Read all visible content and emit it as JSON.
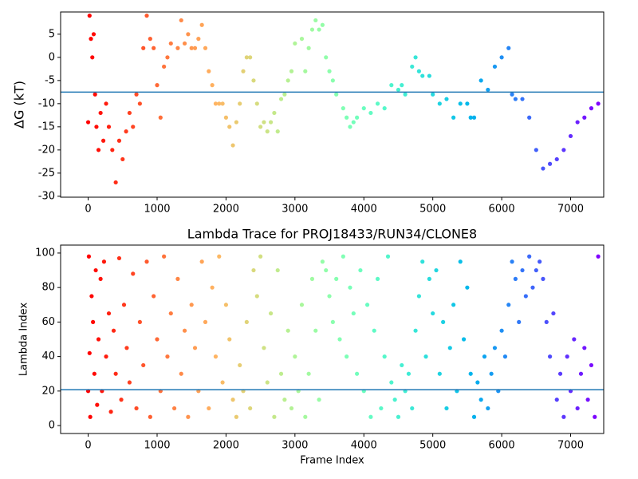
{
  "chart_data": [
    {
      "type": "scatter",
      "ylabel": "ΔG (kT)",
      "colormap": "rainbow_r",
      "hline": -7.5,
      "hline_color": "#1f77b4",
      "xlim": [
        -400,
        7480
      ],
      "xticks": [
        0,
        1000,
        2000,
        3000,
        4000,
        5000,
        6000,
        7000
      ],
      "ylim": [
        -30.2,
        9.8
      ],
      "yticks": [
        -30,
        -25,
        -20,
        -15,
        -10,
        -5,
        0,
        5
      ],
      "x": [
        0,
        20,
        40,
        60,
        80,
        100,
        120,
        150,
        180,
        220,
        260,
        300,
        350,
        400,
        450,
        500,
        550,
        600,
        650,
        700,
        750,
        800,
        850,
        900,
        950,
        1000,
        1050,
        1100,
        1150,
        1200,
        1300,
        1350,
        1400,
        1450,
        1500,
        1550,
        1600,
        1650,
        1700,
        1750,
        1800,
        1850,
        1900,
        1950,
        2000,
        2050,
        2100,
        2150,
        2200,
        2250,
        2300,
        2350,
        2400,
        2450,
        2500,
        2550,
        2600,
        2650,
        2700,
        2750,
        2800,
        2850,
        2900,
        2950,
        3000,
        3100,
        3150,
        3200,
        3250,
        3300,
        3350,
        3400,
        3450,
        3500,
        3550,
        3600,
        3700,
        3750,
        3800,
        3850,
        3900,
        4000,
        4100,
        4200,
        4300,
        4400,
        4500,
        4550,
        4600,
        4700,
        4750,
        4800,
        4850,
        4950,
        5000,
        5100,
        5200,
        5300,
        5400,
        5500,
        5550,
        5600,
        5700,
        5800,
        5900,
        6000,
        6100,
        6150,
        6200,
        6300,
        6400,
        6500,
        6600,
        6700,
        6800,
        6900,
        7000,
        7100,
        7200,
        7300,
        7400
      ],
      "y": [
        -14,
        9,
        4,
        0,
        5,
        -8,
        -15,
        -20,
        -12,
        -18,
        -10,
        -15,
        -20,
        -27,
        -18,
        -22,
        -16,
        -12,
        -15,
        -8,
        -10,
        2,
        9,
        4,
        2,
        -6,
        -13,
        -2,
        0,
        3,
        2,
        8,
        3,
        5,
        2,
        2,
        4,
        7,
        2,
        -3,
        -6,
        -10,
        -10,
        -10,
        -13,
        -15,
        -19,
        -14,
        -10,
        -3,
        0,
        0,
        -5,
        -10,
        -15,
        -14,
        -16,
        -14,
        -12,
        -16,
        -9,
        -8,
        -5,
        -3,
        3,
        4,
        -3,
        2,
        6,
        8,
        6,
        7,
        0,
        -3,
        -5,
        -8,
        -11,
        -13,
        -15,
        -14,
        -13,
        -11,
        -12,
        -10,
        -11,
        -6,
        -7,
        -6,
        -8,
        -2,
        0,
        -3,
        -4,
        -4,
        -8,
        -10,
        -9,
        -13,
        -10,
        -10,
        -13,
        -13,
        -5,
        -7,
        -2,
        0,
        2,
        -8,
        -9,
        -9,
        -13,
        -20,
        -24,
        -23,
        -22,
        -20,
        -17,
        -14,
        -13,
        -11,
        -10
      ]
    },
    {
      "type": "scatter",
      "title": "Lambda Trace for PROJ18433/RUN34/CLONE8",
      "xlabel": "Frame Index",
      "ylabel": "Lambda Index",
      "colormap": "rainbow_r",
      "hline": 20.8,
      "hline_color": "#1f77b4",
      "xlim": [
        -400,
        7480
      ],
      "xticks": [
        0,
        1000,
        2000,
        3000,
        4000,
        5000,
        6000,
        7000
      ],
      "ylim": [
        -4.6,
        104.6
      ],
      "yticks": [
        0,
        20,
        40,
        60,
        80,
        100
      ],
      "x": [
        0,
        10,
        20,
        30,
        50,
        70,
        90,
        110,
        130,
        150,
        180,
        200,
        230,
        260,
        300,
        330,
        370,
        400,
        450,
        480,
        520,
        560,
        600,
        650,
        700,
        750,
        800,
        850,
        900,
        950,
        1000,
        1050,
        1100,
        1150,
        1200,
        1250,
        1300,
        1350,
        1400,
        1450,
        1500,
        1550,
        1600,
        1650,
        1700,
        1750,
        1800,
        1850,
        1900,
        1950,
        2000,
        2050,
        2100,
        2150,
        2200,
        2250,
        2300,
        2350,
        2400,
        2450,
        2500,
        2550,
        2600,
        2650,
        2700,
        2750,
        2800,
        2850,
        2900,
        2950,
        3000,
        3050,
        3100,
        3150,
        3200,
        3250,
        3300,
        3350,
        3400,
        3450,
        3500,
        3550,
        3600,
        3650,
        3700,
        3750,
        3800,
        3850,
        3900,
        3950,
        4000,
        4050,
        4100,
        4150,
        4200,
        4250,
        4300,
        4350,
        4400,
        4450,
        4500,
        4550,
        4600,
        4650,
        4700,
        4750,
        4800,
        4850,
        4900,
        4950,
        5000,
        5050,
        5100,
        5150,
        5200,
        5250,
        5300,
        5350,
        5400,
        5450,
        5500,
        5550,
        5600,
        5650,
        5700,
        5750,
        5800,
        5850,
        5900,
        5950,
        6000,
        6050,
        6100,
        6150,
        6200,
        6250,
        6300,
        6350,
        6400,
        6450,
        6500,
        6550,
        6600,
        6650,
        6700,
        6750,
        6800,
        6850,
        6900,
        6950,
        7000,
        7050,
        7100,
        7150,
        7200,
        7250,
        7300,
        7350,
        7400
      ],
      "y": [
        20,
        98,
        42,
        5,
        75,
        60,
        30,
        90,
        12,
        50,
        85,
        20,
        95,
        40,
        65,
        8,
        55,
        30,
        97,
        15,
        70,
        45,
        25,
        88,
        10,
        60,
        35,
        95,
        5,
        75,
        50,
        20,
        98,
        40,
        65,
        10,
        85,
        30,
        55,
        5,
        70,
        45,
        20,
        95,
        60,
        10,
        80,
        40,
        98,
        25,
        70,
        50,
        15,
        5,
        35,
        20,
        60,
        10,
        90,
        75,
        98,
        45,
        25,
        65,
        5,
        90,
        30,
        15,
        55,
        10,
        40,
        20,
        70,
        5,
        30,
        85,
        55,
        15,
        95,
        90,
        75,
        60,
        85,
        50,
        98,
        40,
        80,
        65,
        30,
        90,
        20,
        70,
        5,
        55,
        85,
        10,
        40,
        98,
        25,
        15,
        5,
        35,
        20,
        30,
        10,
        55,
        75,
        95,
        40,
        85,
        65,
        90,
        30,
        60,
        10,
        45,
        70,
        20,
        95,
        50,
        80,
        30,
        5,
        25,
        15,
        40,
        10,
        30,
        45,
        20,
        55,
        40,
        70,
        95,
        85,
        60,
        90,
        75,
        98,
        80,
        90,
        95,
        85,
        60,
        40,
        65,
        15,
        30,
        5,
        40,
        20,
        50,
        10,
        30,
        45,
        15,
        35,
        5,
        98
      ]
    }
  ]
}
